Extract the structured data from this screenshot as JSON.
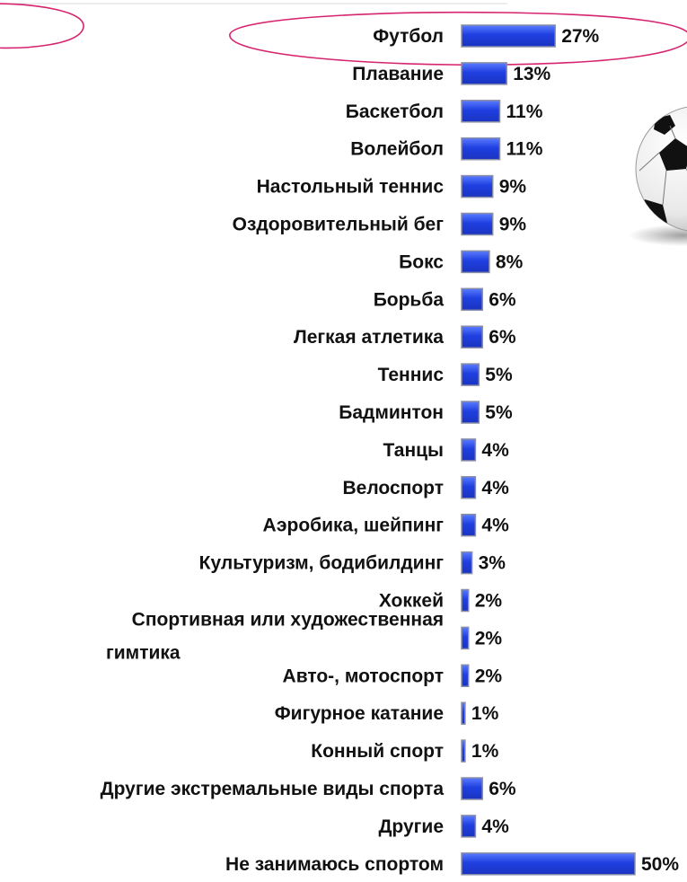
{
  "colors": {
    "bar_fill": "#1f3fe0",
    "bar_fill_light": "#5a7cff",
    "bar_border": "#8a8ea6",
    "text": "#111111",
    "highlight_ellipse": "#d6246e"
  },
  "decorations": {
    "soccer_ball_icon": "soccer-ball"
  },
  "chart_data": {
    "type": "bar",
    "orientation": "horizontal",
    "title": "",
    "xlabel": "",
    "ylabel": "",
    "xlim": [
      0,
      50
    ],
    "grid": false,
    "legend": "none",
    "categories": [
      "Футбол",
      "Плавание",
      "Баскетбол",
      "Волейбол",
      "Настольный теннис",
      "Оздоровительный бег",
      "Бокс",
      "Борьба",
      "Легкая атлетика",
      "Теннис",
      "Бадминтон",
      "Танцы",
      "Велоспорт",
      "Аэробика, шейпинг",
      "Культуризм, бодибилдинг",
      "Хоккей",
      "Спортивная или художественная гимтика",
      "Авто-, мотоспорт",
      "Фигурное катание",
      "Конный спорт",
      "Другие экстремальные виды спорта",
      "Другие",
      "Не занимаюсь спортом"
    ],
    "values": [
      27,
      13,
      11,
      11,
      9,
      9,
      8,
      6,
      6,
      5,
      5,
      4,
      4,
      4,
      3,
      2,
      2,
      2,
      1,
      1,
      6,
      4,
      50
    ],
    "data_labels": [
      "27%",
      "13%",
      "11%",
      "11%",
      "9%",
      "9%",
      "8%",
      "6%",
      "6%",
      "5%",
      "5%",
      "4%",
      "4%",
      "4%",
      "3%",
      "2%",
      "2%",
      "2%",
      "1%",
      "1%",
      "6%",
      "4%",
      "50%"
    ],
    "category_label_lines": {
      "16": [
        "Спортивная или художественная",
        "гимтика"
      ]
    },
    "highlighted_category": "Футбол"
  }
}
